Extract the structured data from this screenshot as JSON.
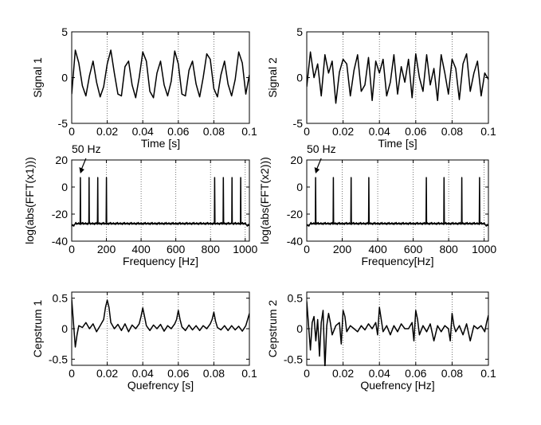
{
  "chart_data": [
    {
      "type": "line",
      "ylabel": "Signal 1",
      "xlabel": "Time [s]",
      "xlim": [
        0,
        0.1
      ],
      "ylim": [
        -5,
        5
      ],
      "xticks": [
        "0",
        "0.02",
        "0.04",
        "0.06",
        "0.08",
        "0.1"
      ],
      "yticks": [
        "5",
        "0",
        "-5"
      ],
      "grid": "vertical dotted",
      "series": [
        {
          "x": [
            0,
            0.002,
            0.004,
            0.006,
            0.008,
            0.01,
            0.012,
            0.014,
            0.016,
            0.018,
            0.02,
            0.022,
            0.024,
            0.026,
            0.028,
            0.03,
            0.032,
            0.034,
            0.036,
            0.038,
            0.04,
            0.042,
            0.044,
            0.046,
            0.048,
            0.05,
            0.052,
            0.054,
            0.056,
            0.058,
            0.06,
            0.062,
            0.064,
            0.066,
            0.068,
            0.07,
            0.072,
            0.074,
            0.076,
            0.078,
            0.08,
            0.082,
            0.084,
            0.086,
            0.088,
            0.09,
            0.092,
            0.094,
            0.096,
            0.098,
            0.1
          ],
          "values": [
            -1.8,
            3.0,
            1.6,
            -0.9,
            -2.0,
            0.2,
            1.8,
            -0.5,
            -2.1,
            -1.0,
            1.5,
            3.0,
            0.5,
            -1.8,
            -2.0,
            1.2,
            1.8,
            -0.8,
            -2.2,
            0.0,
            2.8,
            1.8,
            -1.5,
            -2.2,
            0.5,
            1.8,
            -0.8,
            -2.0,
            -0.4,
            2.9,
            1.5,
            -1.8,
            -2.0,
            0.8,
            1.8,
            -0.7,
            -2.1,
            0.0,
            2.6,
            2.0,
            -1.2,
            -2.1,
            0.3,
            1.8,
            -0.7,
            -2.0,
            -0.2,
            2.8,
            1.6,
            -1.8,
            0.3
          ]
        }
      ]
    },
    {
      "type": "line",
      "ylabel": "Signal 2",
      "xlabel": "Time [s]",
      "xlim": [
        0,
        0.1
      ],
      "ylim": [
        -5,
        5
      ],
      "xticks": [
        "0",
        "0.02",
        "0.04",
        "0.06",
        "0.08",
        "0.1"
      ],
      "yticks": [
        "5",
        "0",
        "-5"
      ],
      "grid": "vertical dotted",
      "series": [
        {
          "x": [
            0,
            0.002,
            0.004,
            0.006,
            0.008,
            0.01,
            0.012,
            0.014,
            0.016,
            0.018,
            0.02,
            0.022,
            0.024,
            0.026,
            0.028,
            0.03,
            0.032,
            0.034,
            0.036,
            0.038,
            0.04,
            0.042,
            0.044,
            0.046,
            0.048,
            0.05,
            0.052,
            0.054,
            0.056,
            0.058,
            0.06,
            0.062,
            0.064,
            0.066,
            0.068,
            0.07,
            0.072,
            0.074,
            0.076,
            0.078,
            0.08,
            0.082,
            0.084,
            0.086,
            0.088,
            0.09,
            0.092,
            0.094,
            0.096,
            0.098,
            0.1
          ],
          "values": [
            -1.0,
            2.8,
            0.0,
            1.5,
            -2.0,
            2.5,
            0.5,
            1.8,
            -2.8,
            0.6,
            2.0,
            1.5,
            -2.0,
            0.8,
            2.5,
            -1.5,
            -0.8,
            2.2,
            -2.5,
            1.8,
            0.5,
            2.0,
            -2.0,
            -0.5,
            2.5,
            -1.8,
            1.2,
            -0.5,
            2.0,
            -2.2,
            2.6,
            0.0,
            -1.5,
            2.5,
            -0.8,
            1.0,
            -2.5,
            2.5,
            0.5,
            -1.8,
            2.0,
            1.0,
            -2.4,
            1.5,
            2.6,
            -1.5,
            0.5,
            1.8,
            -2.0,
            0.5,
            -0.2
          ]
        }
      ]
    },
    {
      "type": "line",
      "ylabel": "log(abs(FFT(x1)))",
      "xlabel": "Frequency [Hz]",
      "xlim": [
        0,
        1024
      ],
      "ylim": [
        -40,
        20
      ],
      "xticks": [
        "0",
        "200",
        "400",
        "600",
        "800",
        "1000"
      ],
      "yticks": [
        "20",
        "0",
        "-20",
        "-40"
      ],
      "grid": "vertical dotted",
      "annotation": "50 Hz",
      "annotation_x": 50,
      "baseline": -27,
      "peaks": [
        {
          "x": 50,
          "y": 7
        },
        {
          "x": 100,
          "y": 7
        },
        {
          "x": 150,
          "y": 7
        },
        {
          "x": 200,
          "y": 7
        },
        {
          "x": 824,
          "y": 7
        },
        {
          "x": 874,
          "y": 7
        },
        {
          "x": 924,
          "y": 7
        },
        {
          "x": 974,
          "y": 7
        }
      ]
    },
    {
      "type": "line",
      "ylabel": "log(abs(FFT(x2)))",
      "xlabel": "Frequency[Hz]",
      "xlim": [
        0,
        1024
      ],
      "ylim": [
        -40,
        20
      ],
      "xticks": [
        "0",
        "200",
        "400",
        "600",
        "800",
        "1000"
      ],
      "yticks": [
        "20",
        "0",
        "-20",
        "-40"
      ],
      "grid": "vertical dotted",
      "annotation": "50 Hz",
      "annotation_x": 50,
      "baseline": -27,
      "peaks": [
        {
          "x": 50,
          "y": 7
        },
        {
          "x": 150,
          "y": 7
        },
        {
          "x": 250,
          "y": 7
        },
        {
          "x": 350,
          "y": 7
        },
        {
          "x": 674,
          "y": 7
        },
        {
          "x": 774,
          "y": 7
        },
        {
          "x": 874,
          "y": 7
        },
        {
          "x": 974,
          "y": 7
        }
      ]
    },
    {
      "type": "line",
      "ylabel": "Cepstrum 1",
      "xlabel": "Quefrency [s]",
      "xlim": [
        0,
        0.1
      ],
      "ylim": [
        -0.6,
        0.6
      ],
      "xticks": [
        "0",
        "0.02",
        "0.04",
        "0.06",
        "0.08",
        "0.1"
      ],
      "yticks": [
        "0.5",
        "0",
        "-0.5"
      ],
      "grid": "vertical dotted",
      "series": [
        {
          "x": [
            0,
            0.001,
            0.002,
            0.003,
            0.004,
            0.006,
            0.008,
            0.01,
            0.012,
            0.014,
            0.016,
            0.018,
            0.019,
            0.02,
            0.021,
            0.022,
            0.024,
            0.026,
            0.028,
            0.03,
            0.032,
            0.034,
            0.036,
            0.038,
            0.039,
            0.04,
            0.041,
            0.042,
            0.044,
            0.046,
            0.048,
            0.05,
            0.052,
            0.054,
            0.056,
            0.058,
            0.059,
            0.06,
            0.061,
            0.062,
            0.064,
            0.066,
            0.068,
            0.07,
            0.072,
            0.074,
            0.076,
            0.078,
            0.079,
            0.08,
            0.081,
            0.082,
            0.084,
            0.086,
            0.088,
            0.09,
            0.092,
            0.094,
            0.096,
            0.098,
            0.099,
            0.1
          ],
          "values": [
            0.48,
            0.1,
            -0.3,
            -0.1,
            0.05,
            0.02,
            0.1,
            0.0,
            0.08,
            -0.05,
            0.05,
            0.15,
            0.35,
            0.47,
            0.35,
            0.1,
            0.0,
            0.07,
            -0.03,
            0.08,
            -0.05,
            0.06,
            0.0,
            0.08,
            0.2,
            0.34,
            0.2,
            0.05,
            -0.03,
            0.06,
            0.0,
            0.07,
            -0.04,
            0.05,
            0.0,
            0.08,
            0.15,
            0.3,
            0.15,
            0.03,
            -0.03,
            0.06,
            -0.02,
            0.05,
            -0.03,
            0.05,
            0.0,
            0.08,
            0.15,
            0.27,
            0.12,
            0.02,
            -0.02,
            0.05,
            -0.03,
            0.05,
            -0.02,
            0.04,
            -0.04,
            0.05,
            0.15,
            0.25
          ]
        }
      ]
    },
    {
      "type": "line",
      "ylabel": "Cepstrum 2",
      "xlabel": "Quefrency [Hz]",
      "xlim": [
        0,
        0.1
      ],
      "ylim": [
        -0.6,
        0.6
      ],
      "xticks": [
        "0",
        "0.02",
        "0.04",
        "0.06",
        "0.08",
        "0.1"
      ],
      "yticks": [
        "0.5",
        "0",
        "-0.5"
      ],
      "grid": "vertical dotted",
      "series": [
        {
          "x": [
            0,
            0.001,
            0.002,
            0.003,
            0.004,
            0.005,
            0.006,
            0.007,
            0.008,
            0.009,
            0.01,
            0.011,
            0.012,
            0.013,
            0.014,
            0.016,
            0.018,
            0.019,
            0.02,
            0.021,
            0.022,
            0.024,
            0.026,
            0.028,
            0.03,
            0.032,
            0.034,
            0.036,
            0.038,
            0.039,
            0.04,
            0.041,
            0.042,
            0.044,
            0.046,
            0.048,
            0.05,
            0.052,
            0.054,
            0.056,
            0.058,
            0.059,
            0.06,
            0.061,
            0.062,
            0.064,
            0.066,
            0.068,
            0.07,
            0.072,
            0.074,
            0.076,
            0.078,
            0.079,
            0.08,
            0.081,
            0.082,
            0.084,
            0.086,
            0.088,
            0.09,
            0.092,
            0.094,
            0.096,
            0.098,
            0.099,
            0.1
          ],
          "values": [
            0.45,
            0.05,
            -0.35,
            0.1,
            0.2,
            -0.2,
            0.15,
            -0.45,
            0.1,
            0.3,
            -0.65,
            0.05,
            0.25,
            0.1,
            -0.1,
            0.05,
            0.1,
            -0.25,
            0.3,
            0.2,
            -0.05,
            0.05,
            0.0,
            -0.05,
            0.05,
            -0.02,
            0.08,
            0.0,
            0.1,
            -0.1,
            0.35,
            0.15,
            -0.05,
            0.05,
            -0.1,
            0.05,
            -0.05,
            0.08,
            0.0,
            0.0,
            0.1,
            -0.2,
            0.3,
            0.15,
            -0.1,
            0.05,
            -0.05,
            0.08,
            -0.2,
            0.05,
            -0.05,
            0.05,
            0.0,
            -0.2,
            0.25,
            0.05,
            -0.05,
            0.05,
            -0.1,
            0.08,
            -0.2,
            0.05,
            0.0,
            0.05,
            -0.05,
            0.1,
            0.22
          ]
        }
      ]
    }
  ]
}
